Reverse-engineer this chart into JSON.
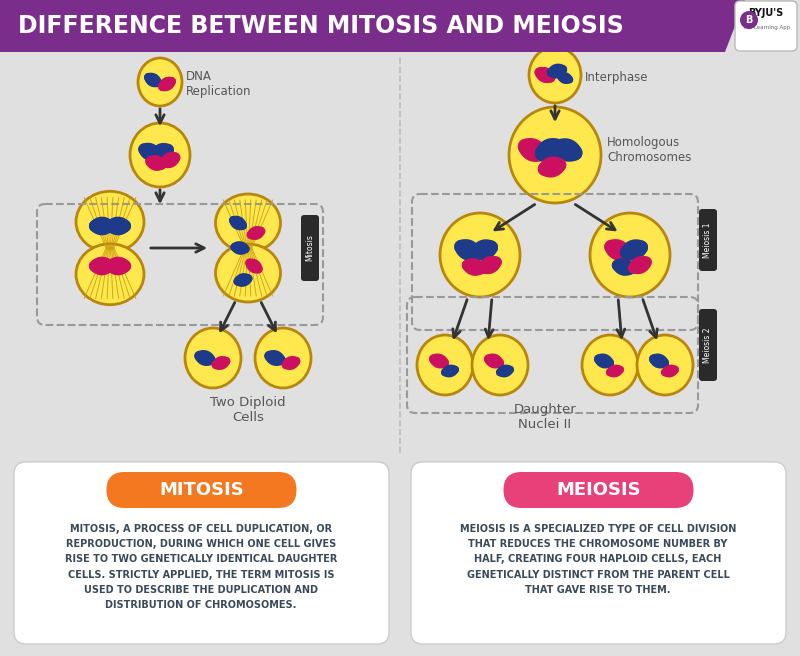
{
  "title": "DIFFERENCE BETWEEN MITOSIS AND MEIOSIS",
  "title_bg_color": "#7B2D8B",
  "title_text_color": "#FFFFFF",
  "bg_color": "#E0E0E0",
  "mitosis_label": "MITOSIS",
  "meiosis_label": "MEIOSIS",
  "mitosis_btn_color": "#F47820",
  "meiosis_btn_color": "#E8417A",
  "mitosis_text": "MITOSIS, A PROCESS OF CELL DUPLICATION, OR\nREPRODUCTION, DURING WHICH ONE CELL GIVES\nRISE TO TWO GENETICALLY IDENTICAL DAUGHTER\nCELLS. STRICTLY APPLIED, THE TERM MITOSIS IS\nUSED TO DESCRIBE THE DUPLICATION AND\nDISTRIBUTION OF CHROMOSOMES.",
  "meiosis_text": "MEIOSIS IS A SPECIALIZED TYPE OF CELL DIVISION\nTHAT REDUCES THE CHROMOSOME NUMBER BY\nHALF, CREATING FOUR HAPLOID CELLS, EACH\nGENETICALLY DISTINCT FROM THE PARENT CELL\nTHAT GAVE RISE TO THEM.",
  "card_bg": "#FFFFFF",
  "card_text_color": "#3A4A5A",
  "dna_replication_label": "DNA\nReplication",
  "interphase_label": "Interphase",
  "homologous_label": "Homologous\nChromosomes",
  "two_diploid_label": "Two Diploid\nCells",
  "daughter_nuclei_label": "Daughter\nNuclei II",
  "meiosis1_label": "Meiosis 1",
  "meiosis2_label": "Meiosis 2",
  "mitosis_side_label": "Mitosis",
  "cell_yellow": "#FFE84D",
  "cell_yellow2": "#FFF176",
  "cell_outline": "#B8860B",
  "chrom_blue": "#1E3A8A",
  "chrom_pink": "#CC1060",
  "spindle_color": "#DAA520",
  "label_color": "#555555",
  "arrow_color": "#333333"
}
